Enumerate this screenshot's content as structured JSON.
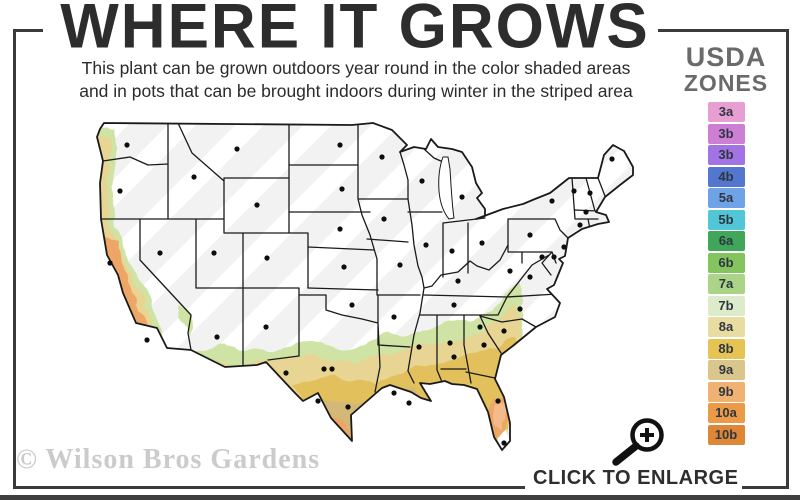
{
  "page": {
    "background": "#ffffff",
    "frame_color": "#3a3a3a"
  },
  "header": {
    "title": "WHERE IT GROWS",
    "subtitle_line1": "This plant can be grown outdoors year round in the color shaded areas",
    "subtitle_line2": "and in pots that can be brought indoors during winter in the striped area"
  },
  "legend": {
    "title_line1": "USDA",
    "title_line2": "ZONES",
    "title_color": "#6a6a6a",
    "zones": [
      {
        "label": "3a",
        "color": "#e79ed3"
      },
      {
        "label": "3b",
        "color": "#cd7fd6"
      },
      {
        "label": "3b",
        "color": "#a273e2"
      },
      {
        "label": "4b",
        "color": "#5377cf"
      },
      {
        "label": "5a",
        "color": "#6fa3e8"
      },
      {
        "label": "5b",
        "color": "#52c5d7"
      },
      {
        "label": "6a",
        "color": "#3fa65a"
      },
      {
        "label": "6b",
        "color": "#84c45e"
      },
      {
        "label": "7a",
        "color": "#abd489"
      },
      {
        "label": "7b",
        "color": "#dcebc9"
      },
      {
        "label": "8a",
        "color": "#e9dca2"
      },
      {
        "label": "8b",
        "color": "#e5c455"
      },
      {
        "label": "9a",
        "color": "#d9c68b"
      },
      {
        "label": "9b",
        "color": "#f0b273"
      },
      {
        "label": "10a",
        "color": "#eb9b47"
      },
      {
        "label": "10b",
        "color": "#dd8737"
      }
    ]
  },
  "map": {
    "base_color": "#f2f2f2",
    "stripe_color": "#ffffff",
    "line_color": "#1a1a1a",
    "zone_colors": {
      "green": "#cfe3a4",
      "yellow": "#e8d593",
      "gold": "#e2c15c",
      "tan": "#d3b877",
      "orange": "#eda666",
      "peach": "#f4ba8c",
      "white": "#ffffff"
    }
  },
  "footer": {
    "watermark": "© Wilson Bros Gardens",
    "enlarge_label": "CLICK TO ENLARGE"
  }
}
